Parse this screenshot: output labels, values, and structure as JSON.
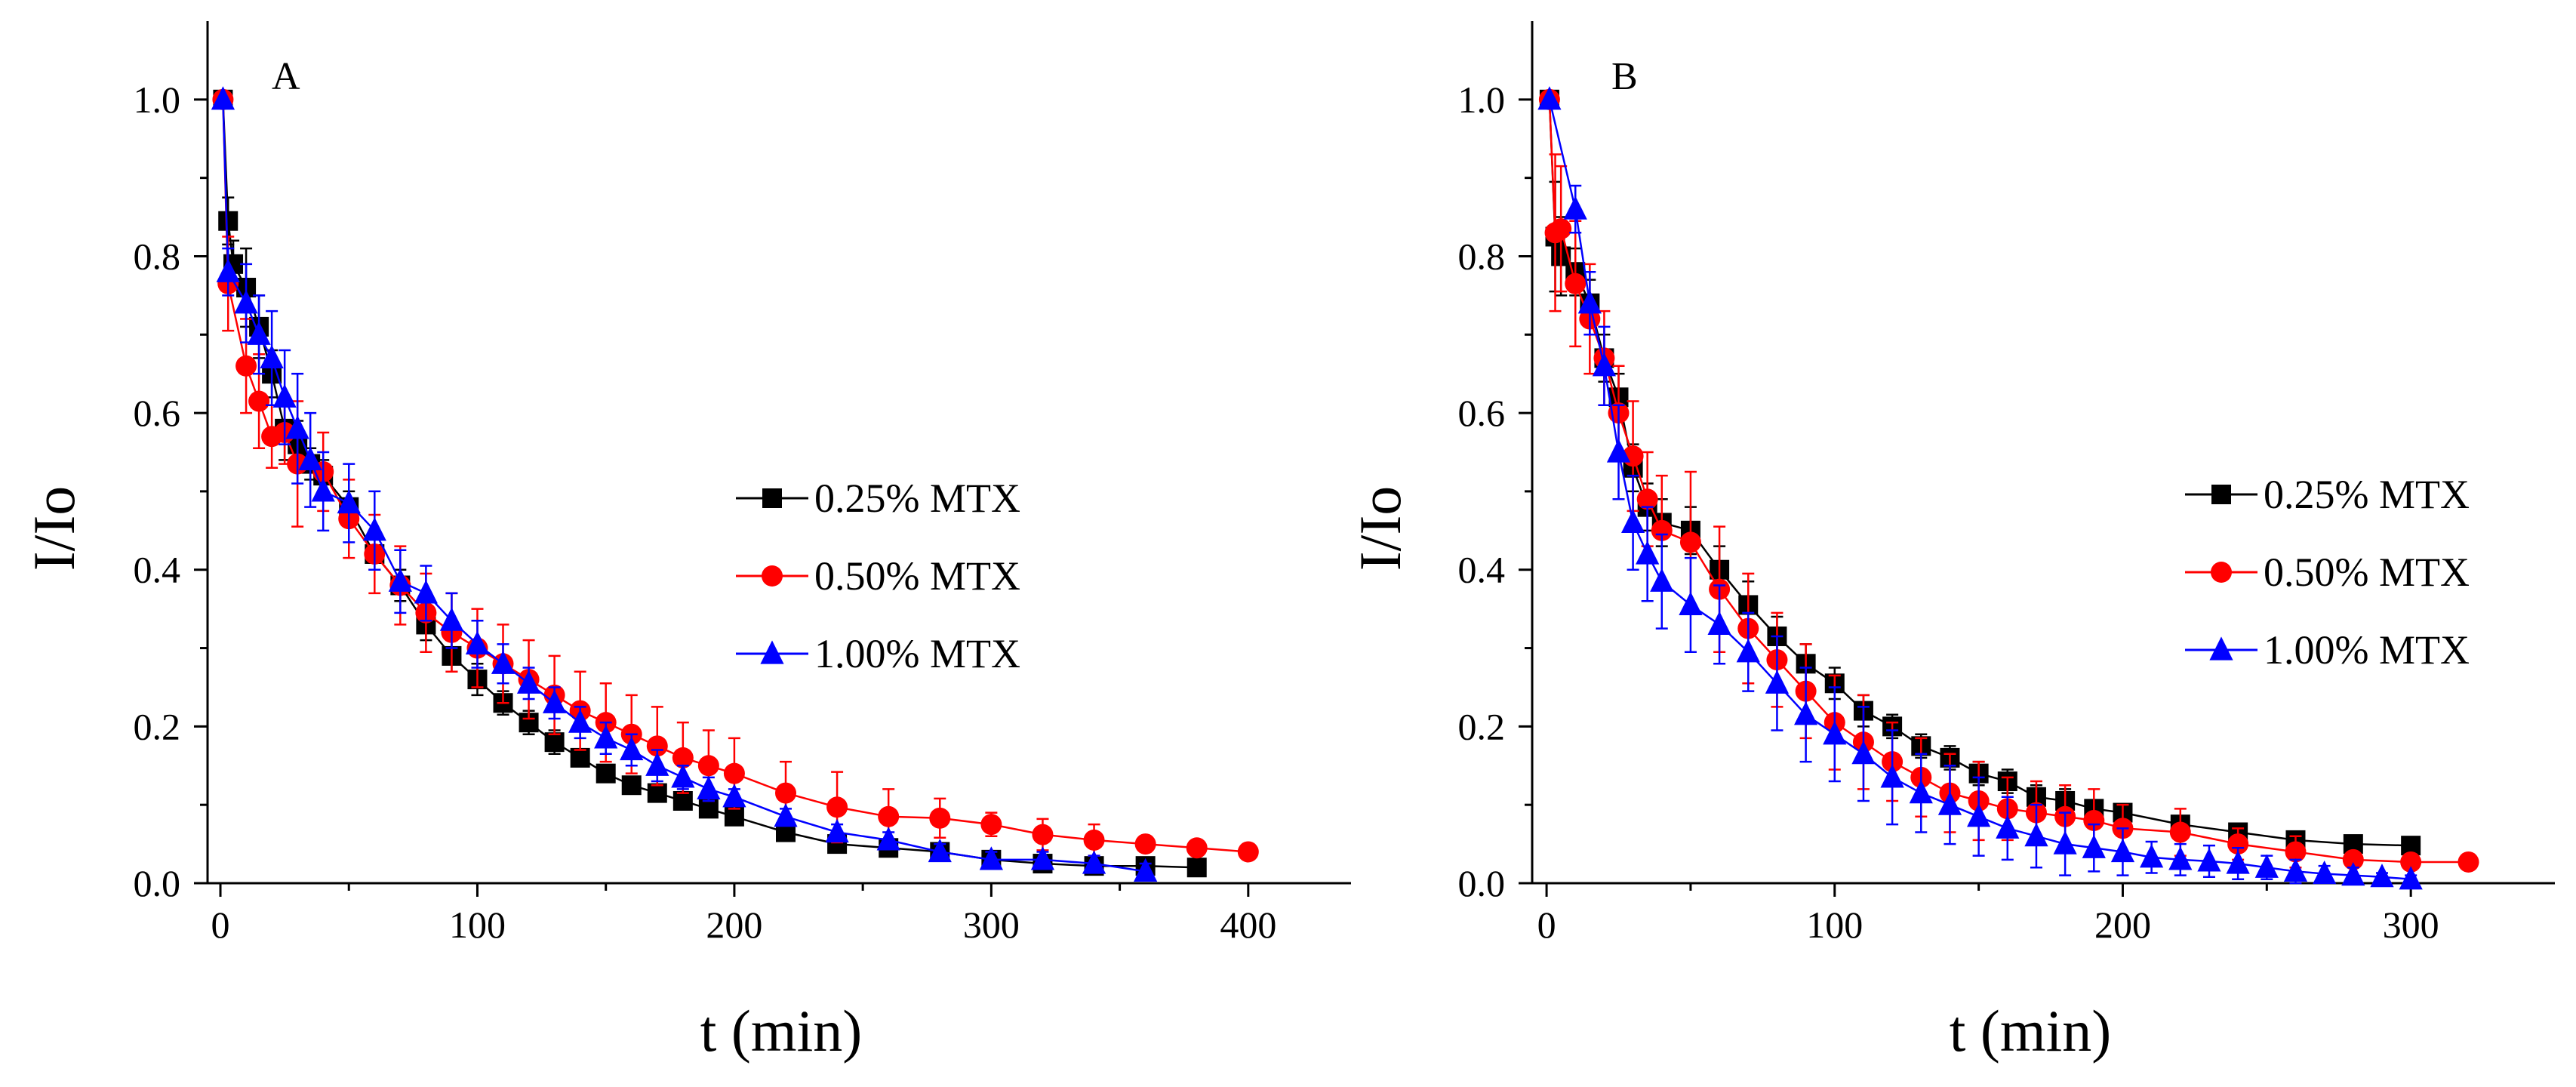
{
  "chart_data": [
    {
      "type": "scatter",
      "panel_label": "A",
      "xlabel": "t (min)",
      "ylabel": "I/Io",
      "xlim": [
        -5,
        440
      ],
      "ylim": [
        0,
        1.1
      ],
      "xticks": [
        0,
        100,
        200,
        300,
        400
      ],
      "xtick_labels": [
        "0",
        "100",
        "200",
        "300",
        "400"
      ],
      "yticks": [
        0.0,
        0.2,
        0.4,
        0.6,
        0.8,
        1.0
      ],
      "ytick_labels": [
        "0.0",
        "0.2",
        "0.4",
        "0.6",
        "0.8",
        "1.0"
      ],
      "legend_position": "center-right",
      "series": [
        {
          "name": "0.25% MTX",
          "color": "#000000",
          "marker": "square",
          "x": [
            1,
            3,
            5,
            10,
            15,
            20,
            25,
            30,
            35,
            40,
            50,
            60,
            70,
            80,
            90,
            100,
            110,
            120,
            130,
            140,
            150,
            160,
            170,
            180,
            190,
            200,
            220,
            240,
            260,
            280,
            300,
            320,
            340,
            360,
            380
          ],
          "y": [
            1.0,
            0.845,
            0.79,
            0.76,
            0.71,
            0.65,
            0.58,
            0.56,
            0.535,
            0.52,
            0.48,
            0.42,
            0.38,
            0.33,
            0.29,
            0.26,
            0.23,
            0.205,
            0.18,
            0.16,
            0.14,
            0.125,
            0.115,
            0.105,
            0.095,
            0.085,
            0.065,
            0.05,
            0.045,
            0.04,
            0.03,
            0.025,
            0.022,
            0.022,
            0.02
          ],
          "err": [
            0,
            0.03,
            0.03,
            0.05,
            0.04,
            0.03,
            0.04,
            0.03,
            0.02,
            0.02,
            0.02,
            0.02,
            0.02,
            0.02,
            0.02,
            0.02,
            0.015,
            0.015,
            0.015,
            0.01,
            0.01,
            0.01,
            0.01,
            0.01,
            0.01,
            0.01,
            0.01,
            0.01,
            0.01,
            0.005,
            0.005,
            0.005,
            0.005,
            0.005,
            0.005
          ]
        },
        {
          "name": "0.50% MTX",
          "color": "#ff0000",
          "marker": "circle",
          "x": [
            1,
            3,
            10,
            15,
            20,
            25,
            30,
            40,
            50,
            60,
            70,
            80,
            90,
            100,
            110,
            120,
            130,
            140,
            150,
            160,
            170,
            180,
            190,
            200,
            220,
            240,
            260,
            280,
            300,
            320,
            340,
            360,
            380,
            400
          ],
          "y": [
            1.0,
            0.765,
            0.66,
            0.615,
            0.57,
            0.575,
            0.535,
            0.525,
            0.465,
            0.42,
            0.38,
            0.345,
            0.32,
            0.3,
            0.28,
            0.26,
            0.24,
            0.22,
            0.205,
            0.19,
            0.175,
            0.16,
            0.15,
            0.14,
            0.115,
            0.097,
            0.085,
            0.083,
            0.075,
            0.062,
            0.055,
            0.05,
            0.045,
            0.04
          ],
          "err": [
            0,
            0.06,
            0.06,
            0.06,
            0.04,
            0.04,
            0.08,
            0.05,
            0.05,
            0.05,
            0.05,
            0.05,
            0.05,
            0.05,
            0.05,
            0.05,
            0.05,
            0.05,
            0.05,
            0.05,
            0.05,
            0.045,
            0.045,
            0.045,
            0.04,
            0.045,
            0.035,
            0.025,
            0.015,
            0.02,
            0.02,
            0.01,
            0.01,
            0.01
          ]
        },
        {
          "name": "1.00% MTX",
          "color": "#0000ff",
          "marker": "triangle",
          "x": [
            1,
            3,
            10,
            15,
            20,
            25,
            30,
            35,
            40,
            50,
            60,
            70,
            80,
            90,
            100,
            110,
            120,
            130,
            140,
            150,
            160,
            170,
            180,
            190,
            200,
            220,
            240,
            260,
            280,
            300,
            320,
            340,
            360
          ],
          "y": [
            1.0,
            0.78,
            0.74,
            0.7,
            0.67,
            0.62,
            0.58,
            0.54,
            0.5,
            0.485,
            0.45,
            0.385,
            0.37,
            0.335,
            0.305,
            0.28,
            0.255,
            0.23,
            0.205,
            0.185,
            0.17,
            0.15,
            0.135,
            0.12,
            0.11,
            0.085,
            0.065,
            0.055,
            0.04,
            0.03,
            0.03,
            0.025,
            0.015
          ],
          "err": [
            0,
            0.03,
            0.05,
            0.05,
            0.06,
            0.06,
            0.07,
            0.06,
            0.05,
            0.05,
            0.05,
            0.04,
            0.035,
            0.035,
            0.03,
            0.025,
            0.02,
            0.02,
            0.02,
            0.02,
            0.02,
            0.02,
            0.015,
            0.015,
            0.01,
            0.01,
            0.01,
            0.01,
            0.01,
            0.01,
            0.01,
            0.01,
            0.01
          ]
        }
      ]
    },
    {
      "type": "scatter",
      "panel_label": "B",
      "xlabel": "t (min)",
      "ylabel": "I/Io",
      "xlim": [
        -5,
        350
      ],
      "ylim": [
        0,
        1.1
      ],
      "xticks": [
        0,
        100,
        200,
        300
      ],
      "xtick_labels": [
        "0",
        "100",
        "200",
        "300"
      ],
      "yticks": [
        0.0,
        0.2,
        0.4,
        0.6,
        0.8,
        1.0
      ],
      "ytick_labels": [
        "0.0",
        "0.2",
        "0.4",
        "0.6",
        "0.8",
        "1.0"
      ],
      "legend_position": "center-right",
      "series": [
        {
          "name": "0.25% MTX",
          "color": "#000000",
          "marker": "square",
          "x": [
            1,
            3,
            5,
            10,
            15,
            20,
            25,
            30,
            35,
            40,
            50,
            60,
            70,
            80,
            90,
            100,
            110,
            120,
            130,
            140,
            150,
            160,
            170,
            180,
            190,
            200,
            220,
            240,
            260,
            280,
            300
          ],
          "y": [
            1.0,
            0.825,
            0.8,
            0.78,
            0.74,
            0.67,
            0.62,
            0.53,
            0.48,
            0.46,
            0.45,
            0.4,
            0.355,
            0.315,
            0.28,
            0.255,
            0.22,
            0.2,
            0.175,
            0.16,
            0.14,
            0.13,
            0.11,
            0.105,
            0.095,
            0.09,
            0.075,
            0.065,
            0.055,
            0.05,
            0.048
          ],
          "err": [
            0,
            0.07,
            0.05,
            0.03,
            0.03,
            0.03,
            0.03,
            0.03,
            0.03,
            0.03,
            0.03,
            0.03,
            0.03,
            0.025,
            0.025,
            0.02,
            0.02,
            0.015,
            0.015,
            0.015,
            0.015,
            0.015,
            0.015,
            0.015,
            0.01,
            0.01,
            0.01,
            0.01,
            0.01,
            0.01,
            0.01
          ]
        },
        {
          "name": "0.50% MTX",
          "color": "#ff0000",
          "marker": "circle",
          "x": [
            1,
            3,
            5,
            10,
            15,
            20,
            25,
            30,
            35,
            40,
            50,
            60,
            70,
            80,
            90,
            100,
            110,
            120,
            130,
            140,
            150,
            160,
            170,
            180,
            190,
            200,
            220,
            240,
            260,
            280,
            300,
            320
          ],
          "y": [
            1.0,
            0.83,
            0.835,
            0.765,
            0.72,
            0.67,
            0.6,
            0.545,
            0.49,
            0.45,
            0.435,
            0.375,
            0.325,
            0.285,
            0.245,
            0.205,
            0.18,
            0.155,
            0.135,
            0.115,
            0.105,
            0.095,
            0.09,
            0.085,
            0.08,
            0.07,
            0.065,
            0.05,
            0.04,
            0.03,
            0.027,
            0.027
          ],
          "err": [
            0,
            0.1,
            0.08,
            0.08,
            0.07,
            0.06,
            0.06,
            0.07,
            0.06,
            0.07,
            0.09,
            0.08,
            0.07,
            0.06,
            0.06,
            0.06,
            0.06,
            0.05,
            0.05,
            0.05,
            0.05,
            0.04,
            0.04,
            0.04,
            0.04,
            0.03,
            0.03,
            0.02,
            0.02,
            0.01,
            0.01,
            0.005
          ]
        },
        {
          "name": "1.00% MTX",
          "color": "#0000ff",
          "marker": "triangle",
          "x": [
            1,
            10,
            15,
            20,
            25,
            30,
            35,
            40,
            50,
            60,
            70,
            80,
            90,
            100,
            110,
            120,
            130,
            140,
            150,
            160,
            170,
            180,
            190,
            200,
            210,
            220,
            230,
            240,
            250,
            260,
            270,
            280,
            290,
            300
          ],
          "y": [
            1.0,
            0.86,
            0.74,
            0.66,
            0.55,
            0.46,
            0.42,
            0.385,
            0.355,
            0.33,
            0.295,
            0.255,
            0.215,
            0.19,
            0.165,
            0.135,
            0.115,
            0.1,
            0.085,
            0.07,
            0.06,
            0.05,
            0.045,
            0.04,
            0.033,
            0.03,
            0.028,
            0.025,
            0.02,
            0.015,
            0.012,
            0.01,
            0.008,
            0.005
          ],
          "err": [
            0,
            0.03,
            0.04,
            0.05,
            0.06,
            0.06,
            0.06,
            0.06,
            0.06,
            0.05,
            0.05,
            0.06,
            0.06,
            0.06,
            0.06,
            0.06,
            0.05,
            0.05,
            0.05,
            0.04,
            0.04,
            0.04,
            0.03,
            0.03,
            0.02,
            0.02,
            0.02,
            0.02,
            0.015,
            0.015,
            0.01,
            0.01,
            0.005,
            0.005
          ]
        }
      ]
    }
  ]
}
